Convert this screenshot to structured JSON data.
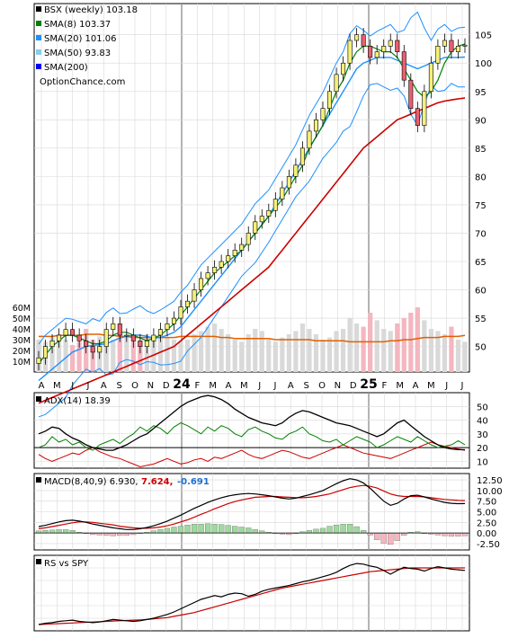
{
  "chart_data": [
    {
      "type": "line",
      "panel": "price",
      "title": "BSX (weekly) 103.18",
      "watermark": "OptionChance.com",
      "x_ticks": [
        "A",
        "M",
        "J",
        "J",
        "A",
        "S",
        "O",
        "N",
        "D",
        "24",
        "F",
        "M",
        "A",
        "M",
        "J",
        "J",
        "A",
        "S",
        "O",
        "N",
        "D",
        "25",
        "F",
        "M",
        "A",
        "M",
        "J",
        "J"
      ],
      "y_ticks": [
        50,
        55,
        60,
        65,
        70,
        75,
        80,
        85,
        90,
        95,
        100,
        105
      ],
      "ylim": [
        45.5,
        110.5
      ],
      "volume_ticks": [
        "60M",
        "50M",
        "40M",
        "30M",
        "20M",
        "10M"
      ],
      "volume_ylim": [
        0,
        70
      ],
      "legend": [
        {
          "label": "BSX (weekly) 103.18",
          "color": "#000000"
        },
        {
          "label": "SMA(8) 103.37",
          "color": "#008000"
        },
        {
          "label": "SMA(20) 101.06",
          "color": "#1e90ff"
        },
        {
          "label": "SMA(50) 93.83",
          "color": "#87ceeb"
        },
        {
          "label": "SMA(200)",
          "color": "#0000ff"
        }
      ],
      "close": [
        48,
        50,
        51,
        52,
        53,
        52,
        51,
        50,
        49,
        50,
        53,
        54,
        52,
        52,
        51,
        50,
        51,
        52,
        53,
        54,
        55,
        57,
        58,
        60,
        62,
        63,
        64,
        65,
        66,
        67,
        68,
        70,
        72,
        73,
        74,
        76,
        78,
        80,
        82,
        85,
        88,
        90,
        92,
        95,
        98,
        100,
        104,
        105,
        103,
        101,
        102,
        103,
        104,
        102,
        97,
        92,
        89,
        95,
        100,
        103,
        104,
        102,
        103,
        103.18
      ],
      "sma8": [
        47,
        48.5,
        50,
        51,
        52,
        52,
        51.5,
        51,
        50.5,
        50.5,
        51,
        52,
        52.5,
        52.5,
        52,
        51.5,
        51,
        51.5,
        52,
        53,
        54,
        55.5,
        57,
        58.5,
        60,
        61.5,
        63,
        64,
        65,
        66,
        67,
        68.5,
        70,
        71.5,
        73,
        74.5,
        76,
        78,
        80,
        82,
        85,
        87,
        89,
        92,
        95,
        97,
        100,
        102,
        103,
        103,
        102.5,
        102,
        102,
        101,
        99,
        97,
        95,
        94,
        95,
        97,
        100,
        102,
        103,
        103.37
      ],
      "sma20": [
        44,
        45,
        46,
        47,
        48,
        49,
        49.5,
        50,
        50.2,
        50.3,
        50.5,
        51,
        51.5,
        51.8,
        52,
        52,
        51.8,
        51.5,
        51.6,
        52,
        52.5,
        53.5,
        55,
        56.5,
        58,
        59.5,
        61,
        62.5,
        64,
        65.5,
        67,
        68.5,
        70,
        71.5,
        73,
        75,
        77,
        79,
        81,
        83,
        85,
        87,
        89,
        91,
        93,
        95,
        97,
        99,
        100,
        100.5,
        101,
        101,
        101,
        100.5,
        100,
        99.5,
        99,
        99.5,
        100,
        100.5,
        101,
        101,
        101,
        101.06
      ],
      "sma50": [
        40,
        40.5,
        41,
        41.5,
        42,
        42.5,
        43,
        43.5,
        44,
        44.5,
        45,
        45.5,
        46,
        46.5,
        47,
        47.5,
        48,
        48.5,
        49,
        49.5,
        50,
        51,
        52,
        53,
        54,
        55,
        56,
        57,
        58,
        59,
        60,
        61,
        62,
        63,
        64,
        65.5,
        67,
        68.5,
        70,
        71.5,
        73,
        74.5,
        76,
        77.5,
        79,
        80.5,
        82,
        83.5,
        85,
        86,
        87,
        88,
        89,
        90,
        90.5,
        91,
        91.5,
        92,
        92.5,
        93,
        93.3,
        93.5,
        93.7,
        93.83
      ],
      "volume": [
        30,
        28,
        32,
        35,
        30,
        25,
        28,
        40,
        30,
        33,
        28,
        30,
        35,
        32,
        30,
        28,
        35,
        30,
        40,
        32,
        30,
        28,
        30,
        35,
        38,
        42,
        45,
        40,
        35,
        30,
        28,
        35,
        40,
        38,
        30,
        28,
        32,
        35,
        38,
        45,
        40,
        35,
        30,
        32,
        38,
        40,
        50,
        45,
        42,
        55,
        48,
        40,
        38,
        45,
        50,
        55,
        60,
        48,
        40,
        38,
        35,
        42,
        30,
        28
      ],
      "volume_avg": [
        33,
        33,
        33,
        34,
        34,
        34,
        34,
        35,
        35,
        35,
        34,
        34,
        33,
        33,
        32,
        32,
        32,
        32,
        32,
        32,
        32,
        33,
        33,
        33,
        33,
        33,
        33,
        32,
        32,
        31,
        31,
        31,
        31,
        31,
        31,
        30,
        30,
        30,
        30,
        30,
        30,
        29,
        29,
        29,
        29,
        29,
        28,
        28,
        28,
        28,
        28,
        28,
        29,
        29,
        30,
        30,
        31,
        32,
        32,
        32,
        33,
        33,
        33,
        34
      ]
    },
    {
      "type": "line",
      "panel": "adx",
      "label": "ADX(14) 18.39",
      "y_ticks": [
        10,
        20,
        30,
        40,
        50
      ],
      "ylim": [
        5,
        60
      ],
      "adx": [
        30,
        32,
        35,
        34,
        30,
        27,
        25,
        22,
        20,
        19,
        18,
        18,
        20,
        22,
        25,
        28,
        30,
        34,
        38,
        42,
        46,
        50,
        53,
        55,
        57,
        58,
        57,
        55,
        52,
        48,
        45,
        42,
        40,
        38,
        37,
        36,
        38,
        42,
        45,
        47,
        46,
        44,
        42,
        40,
        38,
        37,
        36,
        34,
        32,
        30,
        28,
        30,
        34,
        38,
        40,
        36,
        32,
        28,
        25,
        22,
        20,
        19,
        18.5,
        18.39
      ],
      "plus_di": [
        20,
        22,
        28,
        24,
        26,
        22,
        24,
        20,
        18,
        22,
        24,
        26,
        23,
        27,
        30,
        35,
        32,
        36,
        34,
        30,
        35,
        38,
        36,
        33,
        30,
        35,
        32,
        36,
        34,
        30,
        28,
        33,
        35,
        32,
        30,
        27,
        26,
        30,
        32,
        35,
        30,
        28,
        25,
        24,
        26,
        22,
        25,
        28,
        26,
        24,
        20,
        22,
        25,
        28,
        26,
        24,
        28,
        25,
        22,
        20,
        21,
        22,
        25,
        22
      ],
      "minus_di": [
        15,
        12,
        10,
        12,
        14,
        16,
        15,
        18,
        20,
        17,
        15,
        13,
        12,
        10,
        8,
        6,
        7,
        8,
        10,
        12,
        10,
        8,
        9,
        11,
        12,
        10,
        13,
        12,
        14,
        16,
        18,
        15,
        13,
        12,
        14,
        16,
        18,
        17,
        15,
        13,
        12,
        14,
        16,
        18,
        20,
        22,
        20,
        18,
        16,
        15,
        14,
        13,
        12,
        14,
        16,
        18,
        20,
        22,
        24,
        22,
        21,
        20,
        19,
        18
      ]
    },
    {
      "type": "line",
      "panel": "macd",
      "label": "MACD(8,40,9) 6.930,",
      "macd_value": "7.624,",
      "signal_value": "-0.691",
      "y_ticks": [
        -2.5,
        0.0,
        2.5,
        5.0,
        7.5,
        10.0,
        12.5
      ],
      "y_tick_labels": [
        "-2.50",
        "0.00",
        "2.50",
        "5.00",
        "7.50",
        "10.00",
        "12.50"
      ],
      "ylim": [
        -4,
        14
      ],
      "macd": [
        1.5,
        1.8,
        2.2,
        2.6,
        2.9,
        3.0,
        2.8,
        2.5,
        2.1,
        1.8,
        1.5,
        1.2,
        1.0,
        0.8,
        0.8,
        1.0,
        1.3,
        1.7,
        2.2,
        2.8,
        3.5,
        4.2,
        5.0,
        5.8,
        6.5,
        7.2,
        7.8,
        8.3,
        8.7,
        9.0,
        9.2,
        9.3,
        9.2,
        9.0,
        8.8,
        8.5,
        8.2,
        8.0,
        8.2,
        8.6,
        9.0,
        9.5,
        10.0,
        10.8,
        11.6,
        12.3,
        12.8,
        12.5,
        11.8,
        10.5,
        9.0,
        7.5,
        6.5,
        7.0,
        8.0,
        8.8,
        8.9,
        8.5,
        8.0,
        7.6,
        7.2,
        7.0,
        6.9,
        6.93
      ],
      "signal": [
        1.0,
        1.2,
        1.5,
        1.8,
        2.1,
        2.4,
        2.6,
        2.6,
        2.5,
        2.3,
        2.1,
        1.9,
        1.6,
        1.4,
        1.2,
        1.1,
        1.1,
        1.2,
        1.4,
        1.7,
        2.1,
        2.6,
        3.1,
        3.7,
        4.4,
        5.0,
        5.7,
        6.3,
        6.9,
        7.4,
        7.8,
        8.1,
        8.4,
        8.5,
        8.6,
        8.6,
        8.5,
        8.4,
        8.3,
        8.3,
        8.4,
        8.6,
        8.9,
        9.2,
        9.7,
        10.2,
        10.7,
        11.0,
        11.2,
        11.0,
        10.6,
        9.9,
        9.2,
        8.8,
        8.6,
        8.6,
        8.6,
        8.5,
        8.3,
        8.1,
        7.9,
        7.8,
        7.7,
        7.62
      ],
      "histogram": [
        0.5,
        0.6,
        0.7,
        0.8,
        0.8,
        0.6,
        0.2,
        -0.1,
        -0.4,
        -0.5,
        -0.6,
        -0.7,
        -0.6,
        -0.6,
        -0.4,
        -0.1,
        0.2,
        0.5,
        0.8,
        1.1,
        1.4,
        1.6,
        1.9,
        2.1,
        2.1,
        2.2,
        2.1,
        2.0,
        1.8,
        1.6,
        1.4,
        1.2,
        0.8,
        0.5,
        0.2,
        -0.1,
        -0.3,
        -0.4,
        -0.1,
        0.3,
        0.6,
        0.9,
        1.1,
        1.6,
        1.9,
        2.1,
        2.1,
        1.5,
        0.6,
        -0.5,
        -1.6,
        -2.4,
        -2.7,
        -1.8,
        -0.6,
        0.2,
        0.3,
        0.0,
        -0.3,
        -0.5,
        -0.7,
        -0.8,
        -0.8,
        -0.69
      ]
    },
    {
      "type": "line",
      "panel": "rs",
      "label": "RS vs SPY",
      "rs": [
        1.0,
        1.2,
        1.3,
        1.5,
        1.6,
        1.7,
        1.5,
        1.4,
        1.3,
        1.4,
        1.6,
        1.8,
        1.7,
        1.6,
        1.5,
        1.6,
        1.8,
        2.0,
        2.3,
        2.6,
        3.0,
        3.5,
        4.0,
        4.5,
        5.0,
        5.3,
        5.6,
        5.4,
        5.8,
        6.0,
        5.9,
        5.5,
        5.8,
        6.3,
        6.6,
        6.8,
        7.0,
        7.2,
        7.5,
        7.8,
        8.0,
        8.3,
        8.6,
        8.9,
        9.3,
        9.9,
        10.4,
        10.7,
        10.6,
        10.3,
        10.1,
        9.6,
        9.0,
        9.6,
        10.1,
        9.9,
        9.8,
        9.5,
        9.9,
        10.2,
        10.0,
        9.8,
        9.7,
        9.6
      ],
      "rs_ma": [
        1.0,
        1.05,
        1.1,
        1.15,
        1.2,
        1.25,
        1.3,
        1.35,
        1.4,
        1.45,
        1.5,
        1.55,
        1.6,
        1.65,
        1.7,
        1.75,
        1.8,
        1.9,
        2.0,
        2.1,
        2.3,
        2.5,
        2.7,
        2.9,
        3.2,
        3.5,
        3.8,
        4.1,
        4.4,
        4.7,
        5.0,
        5.3,
        5.6,
        5.9,
        6.2,
        6.5,
        6.8,
        7.0,
        7.2,
        7.4,
        7.6,
        7.8,
        8.0,
        8.2,
        8.4,
        8.6,
        8.8,
        9.0,
        9.2,
        9.4,
        9.5,
        9.6,
        9.7,
        9.8,
        9.9,
        10.0,
        10.0,
        10.0,
        10.0,
        10.0,
        10.0,
        10.0,
        10.0,
        10.0
      ],
      "ylim": [
        0,
        12
      ]
    }
  ],
  "colors": {
    "sma8": "#008000",
    "sma20": "#1e90ff",
    "sma50": "#87ceeb",
    "sma200": "#0000ff",
    "ma_red": "#cc0000",
    "volume_up": "#d9d9d9",
    "volume_down": "#f4b6bf",
    "volume_avg": "#e06000",
    "macd_line": "#000000",
    "signal_line": "#cc0000",
    "hist_up": "#9fd99f",
    "hist_down": "#f4b6bf",
    "band": "#1e90ff",
    "grid": "#d8d8d8",
    "envelope": "#e8d800"
  }
}
